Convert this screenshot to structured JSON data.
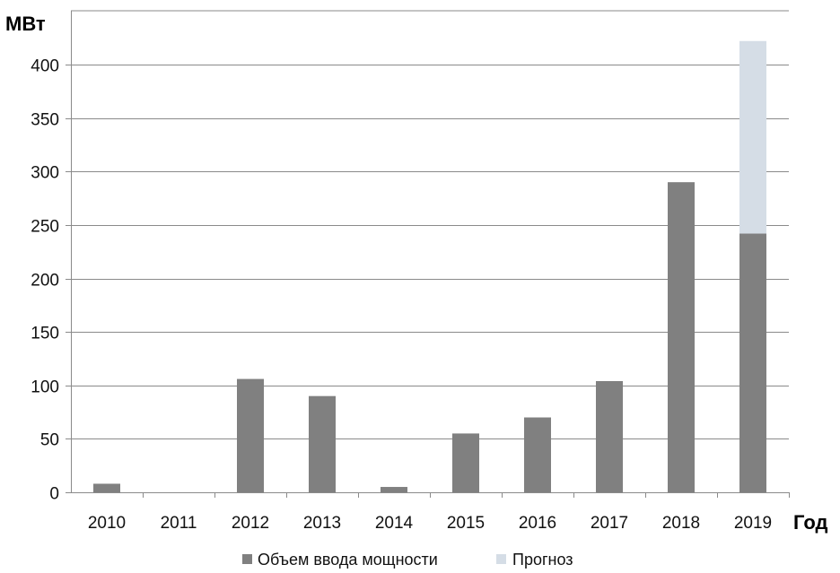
{
  "chart_data": {
    "type": "bar",
    "stacked": true,
    "ylabel": "МВт",
    "xlabel": "Год",
    "categories": [
      "2010",
      "2011",
      "2012",
      "2013",
      "2014",
      "2015",
      "2016",
      "2017",
      "2018",
      "2019"
    ],
    "series": [
      {
        "name": "Объем ввода мощности",
        "color": "#808080",
        "values": [
          8,
          0,
          106,
          90,
          5,
          55,
          70,
          104,
          290,
          242
        ]
      },
      {
        "name": "Прогноз",
        "color": "#d5dde6",
        "values": [
          0,
          0,
          0,
          0,
          0,
          0,
          0,
          0,
          0,
          180
        ]
      }
    ],
    "ylim": [
      0,
      400
    ],
    "yticks": [
      0,
      50,
      100,
      150,
      200,
      250,
      300,
      350,
      400
    ],
    "grid": true,
    "legend_position": "bottom"
  }
}
